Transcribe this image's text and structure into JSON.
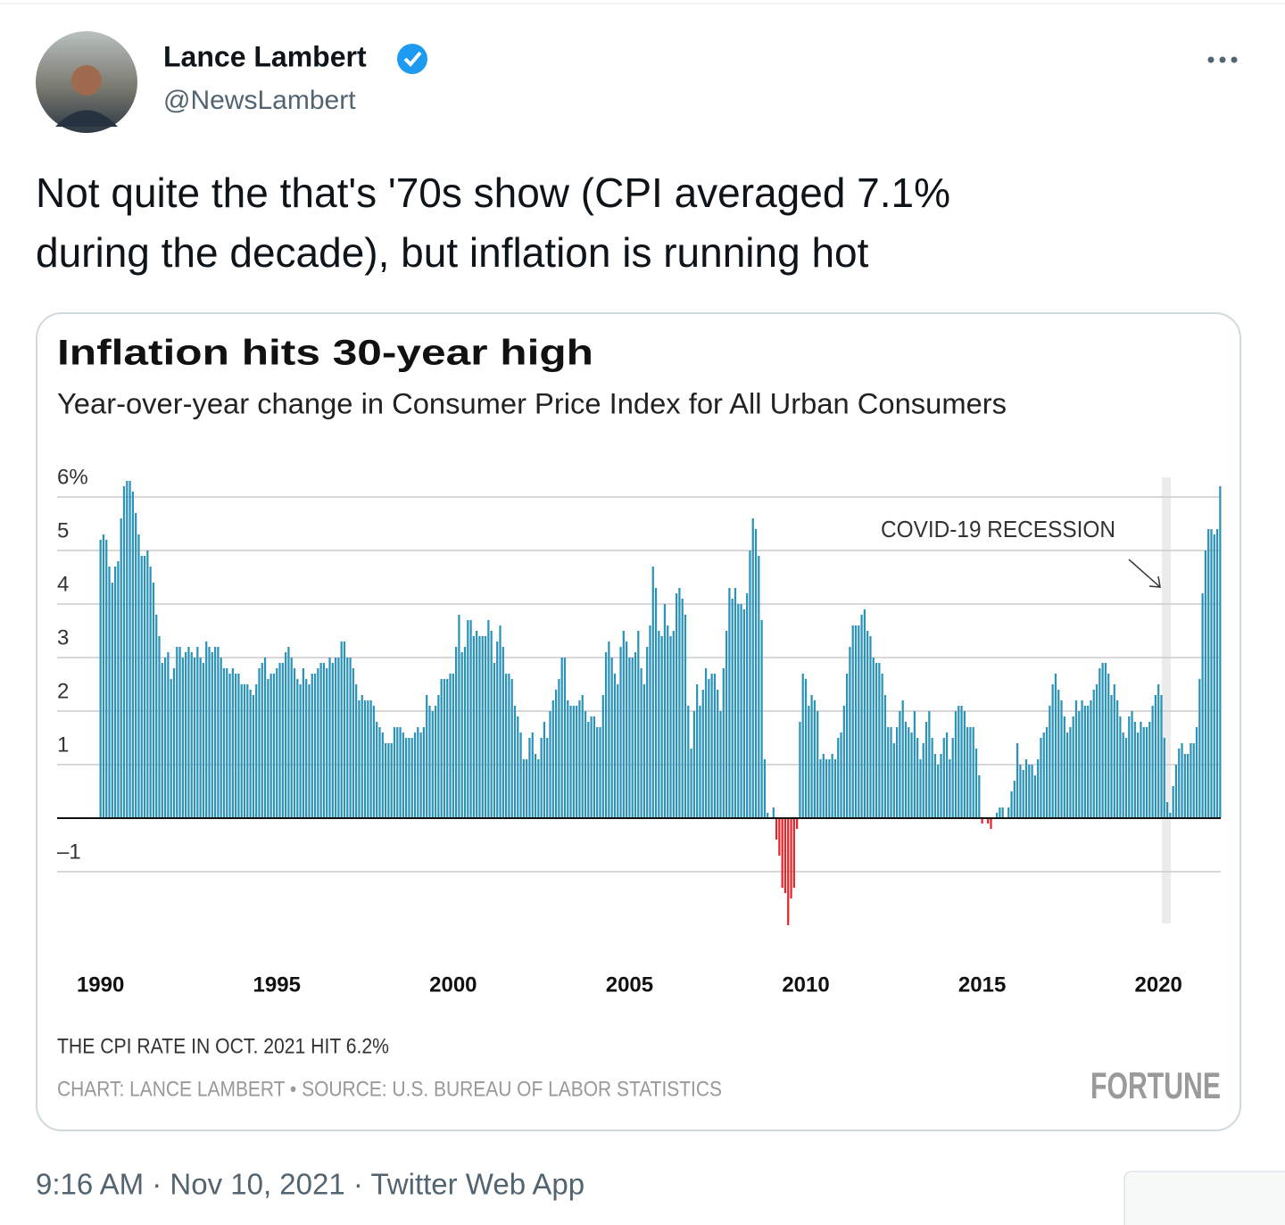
{
  "tweet": {
    "name": "Lance Lambert",
    "handle": "@NewsLambert",
    "text_lines": [
      "Not quite the that's '70s show (CPI averaged 7.1%",
      "during the decade), but inflation is running hot"
    ],
    "timestamp": "9:16 AM · Nov 10, 2021 · Twitter Web App"
  },
  "chart_data": {
    "type": "bar",
    "title": "Inflation hits 30-year high",
    "subtitle": "Year-over-year change in Consumer Price Index for All Urban Consumers",
    "annotation": "COVID-19 RECESSION",
    "note": "THE CPI RATE IN OCT. 2021 HIT 6.2%",
    "source": "CHART: LANCE LAMBERT • SOURCE: U.S. BUREAU OF LABOR STATISTICS",
    "brand": "FORTUNE",
    "categories": [
      "1990",
      null,
      null,
      null,
      null,
      null,
      null,
      null,
      null,
      null,
      null,
      null,
      null,
      null,
      null,
      null,
      null,
      null,
      null,
      null,
      null,
      null,
      null,
      null,
      null,
      null,
      null,
      null,
      null,
      null,
      null,
      null,
      null,
      null,
      null,
      null,
      null,
      null,
      null,
      null,
      null,
      null,
      null,
      null,
      null,
      null,
      null,
      null,
      null,
      null,
      null,
      null,
      null,
      null,
      null,
      null,
      null,
      null,
      null,
      null,
      "1995",
      null,
      null,
      null,
      null,
      null,
      null,
      null,
      null,
      null,
      null,
      null,
      null,
      null,
      null,
      null,
      null,
      null,
      null,
      null,
      null,
      null,
      null,
      null,
      null,
      null,
      null,
      null,
      null,
      null,
      null,
      null,
      null,
      null,
      null,
      null,
      null,
      null,
      null,
      null,
      null,
      null,
      null,
      null,
      null,
      null,
      null,
      null,
      null,
      null,
      null,
      null,
      null,
      null,
      null,
      null,
      null,
      null,
      null,
      null,
      "2000",
      null,
      null,
      null,
      null,
      null,
      null,
      null,
      null,
      null,
      null,
      null,
      null,
      null,
      null,
      null,
      null,
      null,
      null,
      null,
      null,
      null,
      null,
      null,
      null,
      null,
      null,
      null,
      null,
      null,
      null,
      null,
      null,
      null,
      null,
      null,
      null,
      null,
      null,
      null,
      null,
      null,
      null,
      null,
      null,
      null,
      null,
      null,
      null,
      null,
      null,
      null,
      null,
      null,
      null,
      null,
      null,
      null,
      null,
      null,
      "2005",
      null,
      null,
      null,
      null,
      null,
      null,
      null,
      null,
      null,
      null,
      null,
      null,
      null,
      null,
      null,
      null,
      null,
      null,
      null,
      null,
      null,
      null,
      null,
      null,
      null,
      null,
      null,
      null,
      null,
      null,
      null,
      null,
      null,
      null,
      null,
      null,
      null,
      null,
      null,
      null,
      null,
      null,
      null,
      null,
      null,
      null,
      null,
      null,
      null,
      null,
      null,
      null,
      null,
      null,
      null,
      null,
      null,
      null,
      null,
      "2010",
      null,
      null,
      null,
      null,
      null,
      null,
      null,
      null,
      null,
      null,
      null,
      null,
      null,
      null,
      null,
      null,
      null,
      null,
      null,
      null,
      null,
      null,
      null,
      null,
      null,
      null,
      null,
      null,
      null,
      null,
      null,
      null,
      null,
      null,
      null,
      null,
      null,
      null,
      null,
      null,
      null,
      null,
      null,
      null,
      null,
      null,
      null,
      null,
      null,
      null,
      null,
      null,
      null,
      null,
      null,
      null,
      null,
      null,
      null,
      "2015",
      null,
      null,
      null,
      null,
      null,
      null,
      null,
      null,
      null,
      null,
      null,
      null,
      null,
      null,
      null,
      null,
      null,
      null,
      null,
      null,
      null,
      null,
      null,
      null,
      null,
      null,
      null,
      null,
      null,
      null,
      null,
      null,
      null,
      null,
      null,
      null,
      null,
      null,
      null,
      null,
      null,
      null,
      null,
      null,
      null,
      null,
      null,
      null,
      null,
      null,
      null,
      null,
      null,
      null,
      null,
      null,
      null,
      null,
      null,
      "2020",
      null,
      null,
      null,
      null,
      null,
      null,
      null,
      null,
      null,
      null,
      null,
      null,
      null,
      null,
      null,
      null,
      null,
      null,
      null,
      null,
      null
    ],
    "values": [
      5.2,
      5.3,
      5.2,
      4.7,
      4.4,
      4.7,
      4.8,
      5.6,
      6.2,
      6.3,
      6.3,
      6.1,
      5.7,
      5.3,
      4.9,
      4.9,
      5.0,
      4.7,
      4.4,
      3.8,
      3.4,
      2.9,
      3.0,
      3.1,
      2.6,
      2.8,
      3.2,
      3.2,
      3.0,
      3.1,
      3.2,
      3.1,
      3.0,
      3.2,
      3.0,
      2.9,
      3.3,
      3.2,
      3.1,
      3.2,
      3.2,
      3.0,
      2.8,
      2.8,
      2.7,
      2.8,
      2.7,
      2.7,
      2.5,
      2.5,
      2.5,
      2.4,
      2.3,
      2.5,
      2.8,
      2.9,
      3.0,
      2.6,
      2.7,
      2.7,
      2.8,
      2.9,
      2.9,
      3.1,
      3.2,
      3.0,
      2.8,
      2.6,
      2.5,
      2.8,
      2.6,
      2.5,
      2.7,
      2.7,
      2.8,
      2.9,
      2.9,
      2.8,
      3.0,
      2.9,
      3.0,
      3.0,
      3.3,
      3.3,
      3.0,
      3.0,
      2.8,
      2.5,
      2.2,
      2.3,
      2.2,
      2.2,
      2.2,
      2.1,
      1.8,
      1.7,
      1.6,
      1.4,
      1.4,
      1.4,
      1.7,
      1.7,
      1.7,
      1.6,
      1.5,
      1.5,
      1.5,
      1.6,
      1.7,
      1.6,
      1.7,
      2.3,
      2.1,
      2.0,
      2.1,
      2.3,
      2.6,
      2.6,
      2.6,
      2.7,
      2.7,
      3.2,
      3.8,
      3.1,
      3.2,
      3.7,
      3.7,
      3.4,
      3.5,
      3.4,
      3.4,
      3.4,
      3.7,
      3.5,
      2.9,
      3.3,
      3.6,
      3.2,
      2.7,
      2.7,
      2.6,
      2.1,
      1.9,
      1.6,
      1.1,
      1.1,
      1.5,
      1.6,
      1.2,
      1.1,
      1.5,
      1.8,
      1.5,
      2.0,
      2.2,
      2.4,
      2.6,
      3.0,
      3.0,
      2.2,
      2.1,
      2.1,
      2.1,
      2.2,
      2.3,
      2.0,
      1.8,
      1.9,
      1.9,
      1.7,
      1.7,
      2.3,
      3.1,
      3.3,
      3.0,
      2.7,
      2.5,
      3.2,
      3.5,
      3.3,
      3.0,
      3.0,
      3.1,
      3.5,
      2.8,
      2.5,
      3.2,
      3.6,
      4.7,
      4.3,
      3.5,
      3.4,
      4.0,
      3.6,
      3.4,
      3.5,
      4.2,
      4.3,
      4.1,
      3.8,
      2.1,
      1.3,
      2.0,
      2.5,
      2.1,
      2.4,
      2.8,
      2.6,
      2.7,
      2.7,
      2.4,
      2.0,
      2.8,
      3.5,
      4.3,
      4.1,
      4.3,
      4.0,
      4.0,
      3.9,
      4.2,
      5.0,
      5.6,
      5.4,
      4.9,
      3.7,
      1.1,
      0.1,
      0.0,
      0.2,
      -0.4,
      -0.7,
      -1.3,
      -1.4,
      -2.0,
      -1.5,
      -1.3,
      -0.2,
      1.8,
      2.7,
      2.6,
      2.1,
      2.3,
      2.2,
      2.0,
      1.1,
      1.2,
      1.1,
      1.1,
      1.2,
      1.1,
      1.5,
      1.6,
      2.1,
      2.7,
      3.2,
      3.6,
      3.6,
      3.6,
      3.8,
      3.9,
      3.5,
      3.4,
      3.0,
      2.9,
      2.9,
      2.7,
      2.3,
      1.7,
      1.7,
      1.4,
      1.7,
      2.0,
      2.2,
      1.8,
      1.7,
      1.6,
      2.0,
      1.5,
      1.1,
      1.4,
      1.8,
      2.0,
      1.5,
      1.2,
      1.0,
      1.2,
      1.5,
      1.6,
      1.1,
      1.5,
      2.0,
      2.1,
      2.1,
      2.0,
      1.7,
      1.7,
      1.7,
      1.3,
      0.8,
      -0.1,
      0.0,
      -0.1,
      -0.2,
      0.0,
      0.1,
      0.2,
      0.2,
      0.0,
      0.2,
      0.5,
      0.7,
      1.4,
      1.0,
      0.9,
      1.1,
      1.0,
      1.0,
      0.8,
      1.1,
      1.5,
      1.6,
      1.7,
      2.1,
      2.5,
      2.7,
      2.4,
      2.2,
      1.9,
      1.6,
      1.7,
      1.9,
      2.2,
      2.0,
      2.2,
      2.1,
      2.1,
      2.2,
      2.4,
      2.5,
      2.8,
      2.9,
      2.9,
      2.7,
      2.3,
      2.5,
      2.2,
      1.9,
      1.6,
      1.5,
      1.9,
      2.0,
      1.8,
      1.6,
      1.8,
      1.7,
      1.7,
      1.8,
      2.1,
      2.3,
      2.5,
      2.3,
      1.5,
      0.3,
      0.1,
      0.6,
      1.0,
      1.3,
      1.4,
      1.2,
      1.2,
      1.4,
      1.4,
      1.7,
      2.6,
      4.2,
      5.0,
      5.4,
      5.4,
      5.3,
      5.4,
      6.2
    ],
    "color": "#2b93b8",
    "negative_color": "#e4262b",
    "ylim": [
      -2,
      6.5
    ],
    "yticks": [
      {
        "value": -1,
        "label": "–1"
      },
      1,
      2,
      3,
      4,
      5,
      {
        "value": 6,
        "label": "6%"
      }
    ],
    "grid": true
  }
}
